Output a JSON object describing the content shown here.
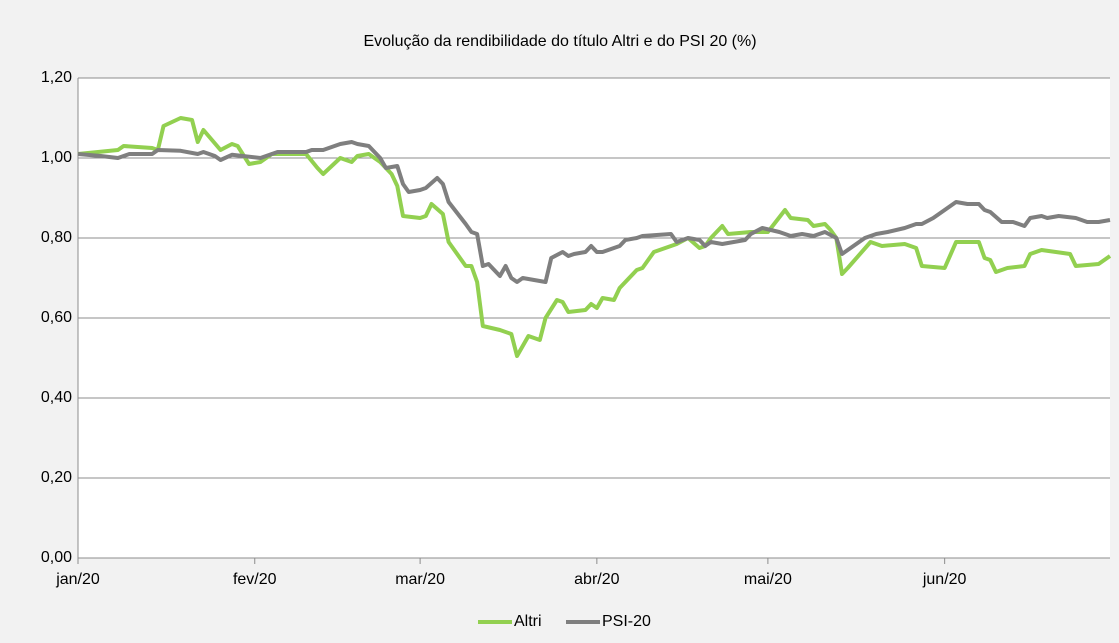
{
  "chart_data": {
    "type": "line",
    "title": "Evolução da rendibilidade  do título Altri e do PSI 20 (%)",
    "xlim": [
      0,
      181
    ],
    "xticks": [
      {
        "value": 0,
        "label": "jan/20"
      },
      {
        "value": 31,
        "label": "fev/20"
      },
      {
        "value": 60,
        "label": "mar/20"
      },
      {
        "value": 91,
        "label": "abr/20"
      },
      {
        "value": 121,
        "label": "mai/20"
      },
      {
        "value": 152,
        "label": "jun/20"
      }
    ],
    "ylim": [
      0,
      1.2
    ],
    "yticks": [
      {
        "value": 0,
        "label": "0,00"
      },
      {
        "value": 0.2,
        "label": "0,20"
      },
      {
        "value": 0.4,
        "label": "0,40"
      },
      {
        "value": 0.6,
        "label": "0,60"
      },
      {
        "value": 0.8,
        "label": "0,80"
      },
      {
        "value": 1.0,
        "label": "1,00"
      },
      {
        "value": 1.2,
        "label": "1,20"
      }
    ],
    "grid": true,
    "legend": "bottom",
    "series": [
      {
        "name": "Altri",
        "color": "#92d050",
        "x": [
          0,
          7,
          8,
          13,
          14,
          15,
          18,
          20,
          21,
          22,
          25,
          27,
          28,
          30,
          32,
          34,
          40,
          42,
          43,
          46,
          48,
          49,
          51,
          53,
          55,
          56,
          57,
          60,
          61,
          62,
          64,
          65,
          68,
          69,
          70,
          71,
          74,
          76,
          77,
          79,
          81,
          82,
          84,
          85,
          86,
          89,
          90,
          91,
          92,
          94,
          95,
          98,
          99,
          101,
          105,
          107,
          109,
          110,
          111,
          113,
          114,
          118,
          121,
          124,
          125,
          128,
          129,
          131,
          132,
          133,
          134,
          135,
          139,
          141,
          145,
          147,
          148,
          152,
          154,
          158,
          159,
          160,
          161,
          163,
          166,
          167,
          169,
          174,
          175,
          179,
          181
        ],
        "values": [
          1.01,
          1.02,
          1.03,
          1.025,
          1.02,
          1.08,
          1.1,
          1.095,
          1.04,
          1.07,
          1.02,
          1.035,
          1.03,
          0.985,
          0.99,
          1.01,
          1.01,
          0.975,
          0.96,
          1.0,
          0.99,
          1.005,
          1.01,
          0.99,
          0.96,
          0.93,
          0.855,
          0.85,
          0.855,
          0.885,
          0.86,
          0.79,
          0.73,
          0.73,
          0.69,
          0.58,
          0.57,
          0.56,
          0.505,
          0.555,
          0.545,
          0.6,
          0.645,
          0.64,
          0.615,
          0.62,
          0.635,
          0.625,
          0.65,
          0.645,
          0.675,
          0.72,
          0.725,
          0.765,
          0.785,
          0.8,
          0.775,
          0.78,
          0.8,
          0.83,
          0.81,
          0.815,
          0.815,
          0.87,
          0.85,
          0.845,
          0.83,
          0.835,
          0.82,
          0.8,
          0.71,
          0.725,
          0.79,
          0.78,
          0.785,
          0.775,
          0.73,
          0.725,
          0.79,
          0.79,
          0.75,
          0.745,
          0.715,
          0.725,
          0.73,
          0.76,
          0.77,
          0.76,
          0.73,
          0.735,
          0.755
        ]
      },
      {
        "name": "PSI-20",
        "color": "#7f7f7f",
        "x": [
          0,
          4,
          7,
          9,
          13,
          14,
          18,
          21,
          22,
          24,
          25,
          27,
          32,
          35,
          40,
          41,
          43,
          44,
          46,
          48,
          49,
          51,
          53,
          54,
          56,
          57,
          58,
          60,
          61,
          63,
          64,
          65,
          68,
          69,
          70,
          71,
          72,
          73,
          74,
          75,
          76,
          77,
          78,
          80,
          82,
          83,
          85,
          86,
          87,
          89,
          90,
          91,
          92,
          94,
          95,
          96,
          98,
          99,
          104,
          105,
          107,
          109,
          110,
          111,
          113,
          117,
          118,
          120,
          123,
          125,
          127,
          129,
          131,
          133,
          134,
          135,
          138,
          140,
          142,
          145,
          147,
          148,
          150,
          152,
          154,
          156,
          158,
          159,
          160,
          162,
          164,
          166,
          167,
          169,
          170,
          172,
          175,
          177,
          179,
          181
        ],
        "values": [
          1.01,
          1.005,
          1.0,
          1.01,
          1.01,
          1.02,
          1.018,
          1.01,
          1.015,
          1.005,
          0.995,
          1.008,
          1.0,
          1.015,
          1.015,
          1.02,
          1.02,
          1.025,
          1.035,
          1.04,
          1.035,
          1.03,
          1.0,
          0.975,
          0.98,
          0.935,
          0.915,
          0.92,
          0.925,
          0.95,
          0.935,
          0.89,
          0.835,
          0.815,
          0.81,
          0.73,
          0.735,
          0.72,
          0.705,
          0.73,
          0.7,
          0.69,
          0.7,
          0.695,
          0.69,
          0.75,
          0.765,
          0.755,
          0.76,
          0.765,
          0.78,
          0.765,
          0.765,
          0.775,
          0.78,
          0.795,
          0.8,
          0.805,
          0.81,
          0.79,
          0.8,
          0.795,
          0.78,
          0.79,
          0.785,
          0.795,
          0.81,
          0.825,
          0.815,
          0.805,
          0.81,
          0.805,
          0.815,
          0.8,
          0.76,
          0.77,
          0.8,
          0.81,
          0.815,
          0.825,
          0.835,
          0.835,
          0.85,
          0.87,
          0.89,
          0.885,
          0.885,
          0.87,
          0.865,
          0.84,
          0.84,
          0.83,
          0.85,
          0.855,
          0.85,
          0.855,
          0.85,
          0.84,
          0.84,
          0.845
        ]
      }
    ]
  }
}
